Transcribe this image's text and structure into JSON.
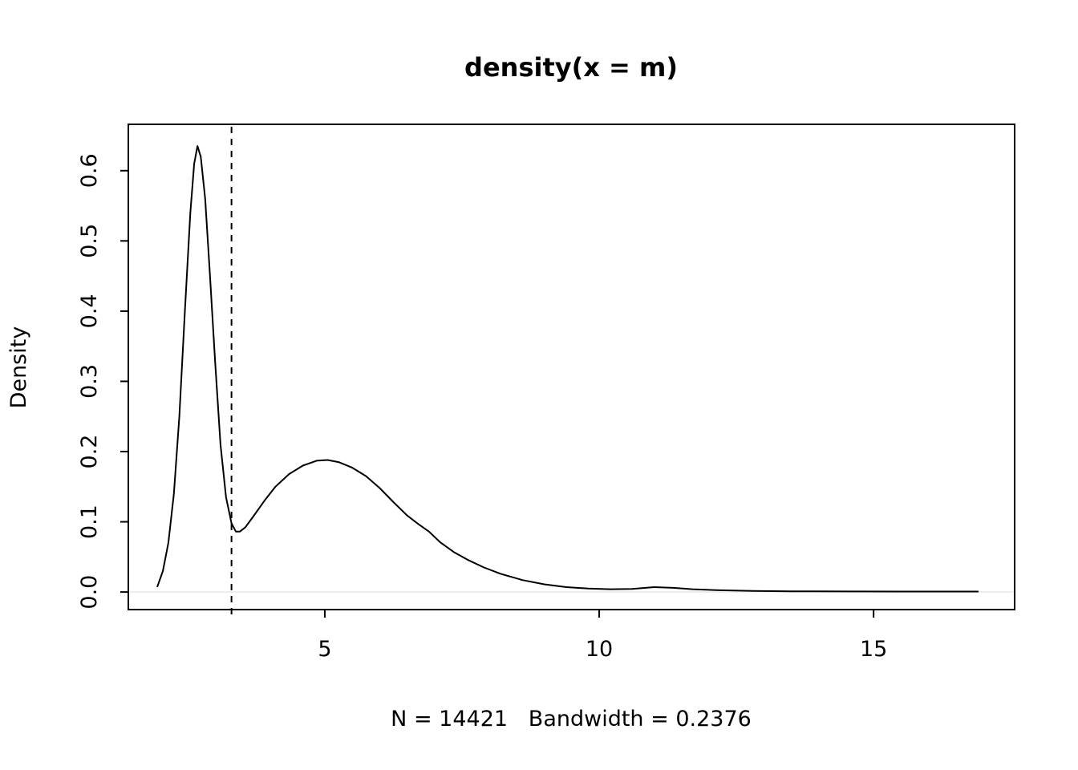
{
  "figure": {
    "background": "#ffffff",
    "line_color": "#000000"
  },
  "chart_data": {
    "type": "line",
    "subtype": "kernel-density",
    "title": "density(x = m)",
    "xlabel": "N = 14421   Bandwidth = 0.2376",
    "ylabel": "Density",
    "n": 14421,
    "bandwidth": 0.2376,
    "xlim": [
      1.42,
      17.57
    ],
    "ylim": [
      -0.025,
      0.666
    ],
    "x_ticks": [
      {
        "v": 5,
        "label": "5"
      },
      {
        "v": 10,
        "label": "10"
      },
      {
        "v": 15,
        "label": "15"
      }
    ],
    "y_ticks": [
      {
        "v": 0.0,
        "label": "0.0"
      },
      {
        "v": 0.1,
        "label": "0.1"
      },
      {
        "v": 0.2,
        "label": "0.2"
      },
      {
        "v": 0.3,
        "label": "0.3"
      },
      {
        "v": 0.4,
        "label": "0.4"
      },
      {
        "v": 0.5,
        "label": "0.5"
      },
      {
        "v": 0.6,
        "label": "0.6"
      }
    ],
    "grid": false,
    "legend": "none",
    "vline": {
      "x": 3.3,
      "style": "dashed",
      "color": "#000000"
    },
    "baseline": {
      "y": 0.0,
      "color": "#ededed"
    },
    "series": [
      {
        "name": "density",
        "color": "#000000",
        "points": [
          [
            1.95,
            0.008
          ],
          [
            2.05,
            0.03
          ],
          [
            2.15,
            0.07
          ],
          [
            2.25,
            0.14
          ],
          [
            2.35,
            0.25
          ],
          [
            2.45,
            0.4
          ],
          [
            2.55,
            0.54
          ],
          [
            2.62,
            0.61
          ],
          [
            2.68,
            0.635
          ],
          [
            2.74,
            0.62
          ],
          [
            2.82,
            0.56
          ],
          [
            2.9,
            0.46
          ],
          [
            3.0,
            0.33
          ],
          [
            3.1,
            0.21
          ],
          [
            3.2,
            0.135
          ],
          [
            3.3,
            0.098
          ],
          [
            3.38,
            0.086
          ],
          [
            3.45,
            0.086
          ],
          [
            3.55,
            0.092
          ],
          [
            3.7,
            0.108
          ],
          [
            3.9,
            0.13
          ],
          [
            4.1,
            0.15
          ],
          [
            4.35,
            0.168
          ],
          [
            4.6,
            0.18
          ],
          [
            4.85,
            0.187
          ],
          [
            5.05,
            0.188
          ],
          [
            5.25,
            0.185
          ],
          [
            5.5,
            0.177
          ],
          [
            5.75,
            0.165
          ],
          [
            6.0,
            0.148
          ],
          [
            6.25,
            0.128
          ],
          [
            6.5,
            0.109
          ],
          [
            6.7,
            0.097
          ],
          [
            6.9,
            0.086
          ],
          [
            7.1,
            0.071
          ],
          [
            7.35,
            0.057
          ],
          [
            7.6,
            0.046
          ],
          [
            7.9,
            0.035
          ],
          [
            8.2,
            0.026
          ],
          [
            8.6,
            0.017
          ],
          [
            9.0,
            0.011
          ],
          [
            9.4,
            0.007
          ],
          [
            9.8,
            0.005
          ],
          [
            10.2,
            0.004
          ],
          [
            10.6,
            0.0045
          ],
          [
            11.0,
            0.007
          ],
          [
            11.35,
            0.006
          ],
          [
            11.7,
            0.004
          ],
          [
            12.2,
            0.0025
          ],
          [
            12.8,
            0.0015
          ],
          [
            13.5,
            0.001
          ],
          [
            14.5,
            0.0008
          ],
          [
            15.5,
            0.0007
          ],
          [
            16.9,
            0.0007
          ]
        ]
      }
    ]
  }
}
